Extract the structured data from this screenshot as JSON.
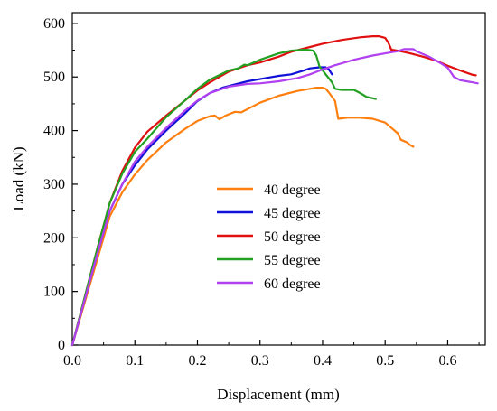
{
  "chart_data": {
    "type": "line",
    "title": "",
    "xlabel": "Displacement (mm)",
    "ylabel": "Load (kN)",
    "xlim": [
      0.0,
      0.66
    ],
    "ylim": [
      0,
      620
    ],
    "x_ticks": [
      "0.0",
      "0.1",
      "0.2",
      "0.3",
      "0.4",
      "0.5",
      "0.6"
    ],
    "y_ticks": [
      "0",
      "100",
      "200",
      "300",
      "400",
      "500",
      "600"
    ],
    "grid": false,
    "legend_position": "center",
    "series": [
      {
        "name": "40 degree",
        "color": "#FF7F0E",
        "points": [
          [
            0,
            0
          ],
          [
            0.02,
            80
          ],
          [
            0.04,
            160
          ],
          [
            0.06,
            240
          ],
          [
            0.08,
            285
          ],
          [
            0.1,
            318
          ],
          [
            0.12,
            345
          ],
          [
            0.15,
            378
          ],
          [
            0.18,
            403
          ],
          [
            0.2,
            418
          ],
          [
            0.22,
            427
          ],
          [
            0.228,
            428
          ],
          [
            0.235,
            421
          ],
          [
            0.245,
            428
          ],
          [
            0.26,
            435
          ],
          [
            0.27,
            434
          ],
          [
            0.28,
            440
          ],
          [
            0.3,
            452
          ],
          [
            0.33,
            465
          ],
          [
            0.36,
            474
          ],
          [
            0.38,
            478
          ],
          [
            0.39,
            480
          ],
          [
            0.4,
            480
          ],
          [
            0.405,
            478
          ],
          [
            0.41,
            471
          ],
          [
            0.42,
            455
          ],
          [
            0.425,
            422
          ],
          [
            0.44,
            424
          ],
          [
            0.46,
            424
          ],
          [
            0.48,
            422
          ],
          [
            0.5,
            415
          ],
          [
            0.51,
            405
          ],
          [
            0.52,
            395
          ],
          [
            0.525,
            383
          ],
          [
            0.535,
            378
          ],
          [
            0.54,
            373
          ],
          [
            0.545,
            370
          ]
        ]
      },
      {
        "name": "45 degree",
        "color": "#1010D8",
        "points": [
          [
            0,
            0
          ],
          [
            0.02,
            85
          ],
          [
            0.04,
            170
          ],
          [
            0.06,
            250
          ],
          [
            0.08,
            300
          ],
          [
            0.1,
            335
          ],
          [
            0.12,
            365
          ],
          [
            0.15,
            400
          ],
          [
            0.18,
            432
          ],
          [
            0.2,
            455
          ],
          [
            0.22,
            470
          ],
          [
            0.24,
            480
          ],
          [
            0.26,
            486
          ],
          [
            0.28,
            492
          ],
          [
            0.3,
            496
          ],
          [
            0.32,
            500
          ],
          [
            0.33,
            502
          ],
          [
            0.35,
            505
          ],
          [
            0.37,
            512
          ],
          [
            0.38,
            516
          ],
          [
            0.395,
            518
          ],
          [
            0.405,
            518
          ],
          [
            0.41,
            514
          ],
          [
            0.415,
            505
          ]
        ]
      },
      {
        "name": "50 degree",
        "color": "#E01010",
        "points": [
          [
            0,
            0
          ],
          [
            0.02,
            90
          ],
          [
            0.04,
            180
          ],
          [
            0.06,
            265
          ],
          [
            0.08,
            325
          ],
          [
            0.1,
            368
          ],
          [
            0.12,
            398
          ],
          [
            0.15,
            428
          ],
          [
            0.18,
            456
          ],
          [
            0.2,
            475
          ],
          [
            0.22,
            490
          ],
          [
            0.25,
            510
          ],
          [
            0.28,
            522
          ],
          [
            0.3,
            527
          ],
          [
            0.33,
            538
          ],
          [
            0.35,
            547
          ],
          [
            0.38,
            556
          ],
          [
            0.4,
            562
          ],
          [
            0.43,
            569
          ],
          [
            0.46,
            574
          ],
          [
            0.48,
            576
          ],
          [
            0.49,
            576
          ],
          [
            0.5,
            573
          ],
          [
            0.505,
            564
          ],
          [
            0.51,
            551
          ],
          [
            0.52,
            549
          ],
          [
            0.54,
            544
          ],
          [
            0.56,
            538
          ],
          [
            0.58,
            531
          ],
          [
            0.6,
            521
          ],
          [
            0.62,
            512
          ],
          [
            0.64,
            504
          ],
          [
            0.645,
            503
          ]
        ]
      },
      {
        "name": "55 degree",
        "color": "#22A022",
        "points": [
          [
            0,
            0
          ],
          [
            0.02,
            90
          ],
          [
            0.04,
            180
          ],
          [
            0.06,
            265
          ],
          [
            0.08,
            320
          ],
          [
            0.1,
            360
          ],
          [
            0.12,
            385
          ],
          [
            0.15,
            425
          ],
          [
            0.18,
            456
          ],
          [
            0.2,
            478
          ],
          [
            0.22,
            495
          ],
          [
            0.25,
            512
          ],
          [
            0.265,
            516
          ],
          [
            0.275,
            523
          ],
          [
            0.28,
            522
          ],
          [
            0.3,
            532
          ],
          [
            0.33,
            544
          ],
          [
            0.35,
            549
          ],
          [
            0.37,
            551
          ],
          [
            0.38,
            550
          ],
          [
            0.385,
            549
          ],
          [
            0.39,
            540
          ],
          [
            0.395,
            520
          ],
          [
            0.405,
            505
          ],
          [
            0.415,
            490
          ],
          [
            0.42,
            478
          ],
          [
            0.43,
            476
          ],
          [
            0.45,
            476
          ],
          [
            0.46,
            470
          ],
          [
            0.47,
            463
          ],
          [
            0.485,
            459
          ]
        ]
      },
      {
        "name": "60 degree",
        "color": "#B040F0",
        "points": [
          [
            0,
            0
          ],
          [
            0.02,
            85
          ],
          [
            0.04,
            170
          ],
          [
            0.06,
            250
          ],
          [
            0.08,
            300
          ],
          [
            0.1,
            342
          ],
          [
            0.12,
            370
          ],
          [
            0.15,
            405
          ],
          [
            0.18,
            437
          ],
          [
            0.2,
            456
          ],
          [
            0.22,
            470
          ],
          [
            0.25,
            482
          ],
          [
            0.28,
            487
          ],
          [
            0.3,
            488
          ],
          [
            0.33,
            492
          ],
          [
            0.36,
            498
          ],
          [
            0.38,
            505
          ],
          [
            0.4,
            514
          ],
          [
            0.42,
            522
          ],
          [
            0.45,
            532
          ],
          [
            0.48,
            540
          ],
          [
            0.5,
            544
          ],
          [
            0.52,
            548
          ],
          [
            0.53,
            552
          ],
          [
            0.545,
            552
          ],
          [
            0.55,
            548
          ],
          [
            0.57,
            538
          ],
          [
            0.59,
            525
          ],
          [
            0.6,
            517
          ],
          [
            0.61,
            500
          ],
          [
            0.62,
            494
          ],
          [
            0.63,
            492
          ],
          [
            0.64,
            490
          ],
          [
            0.648,
            488
          ]
        ]
      }
    ]
  }
}
